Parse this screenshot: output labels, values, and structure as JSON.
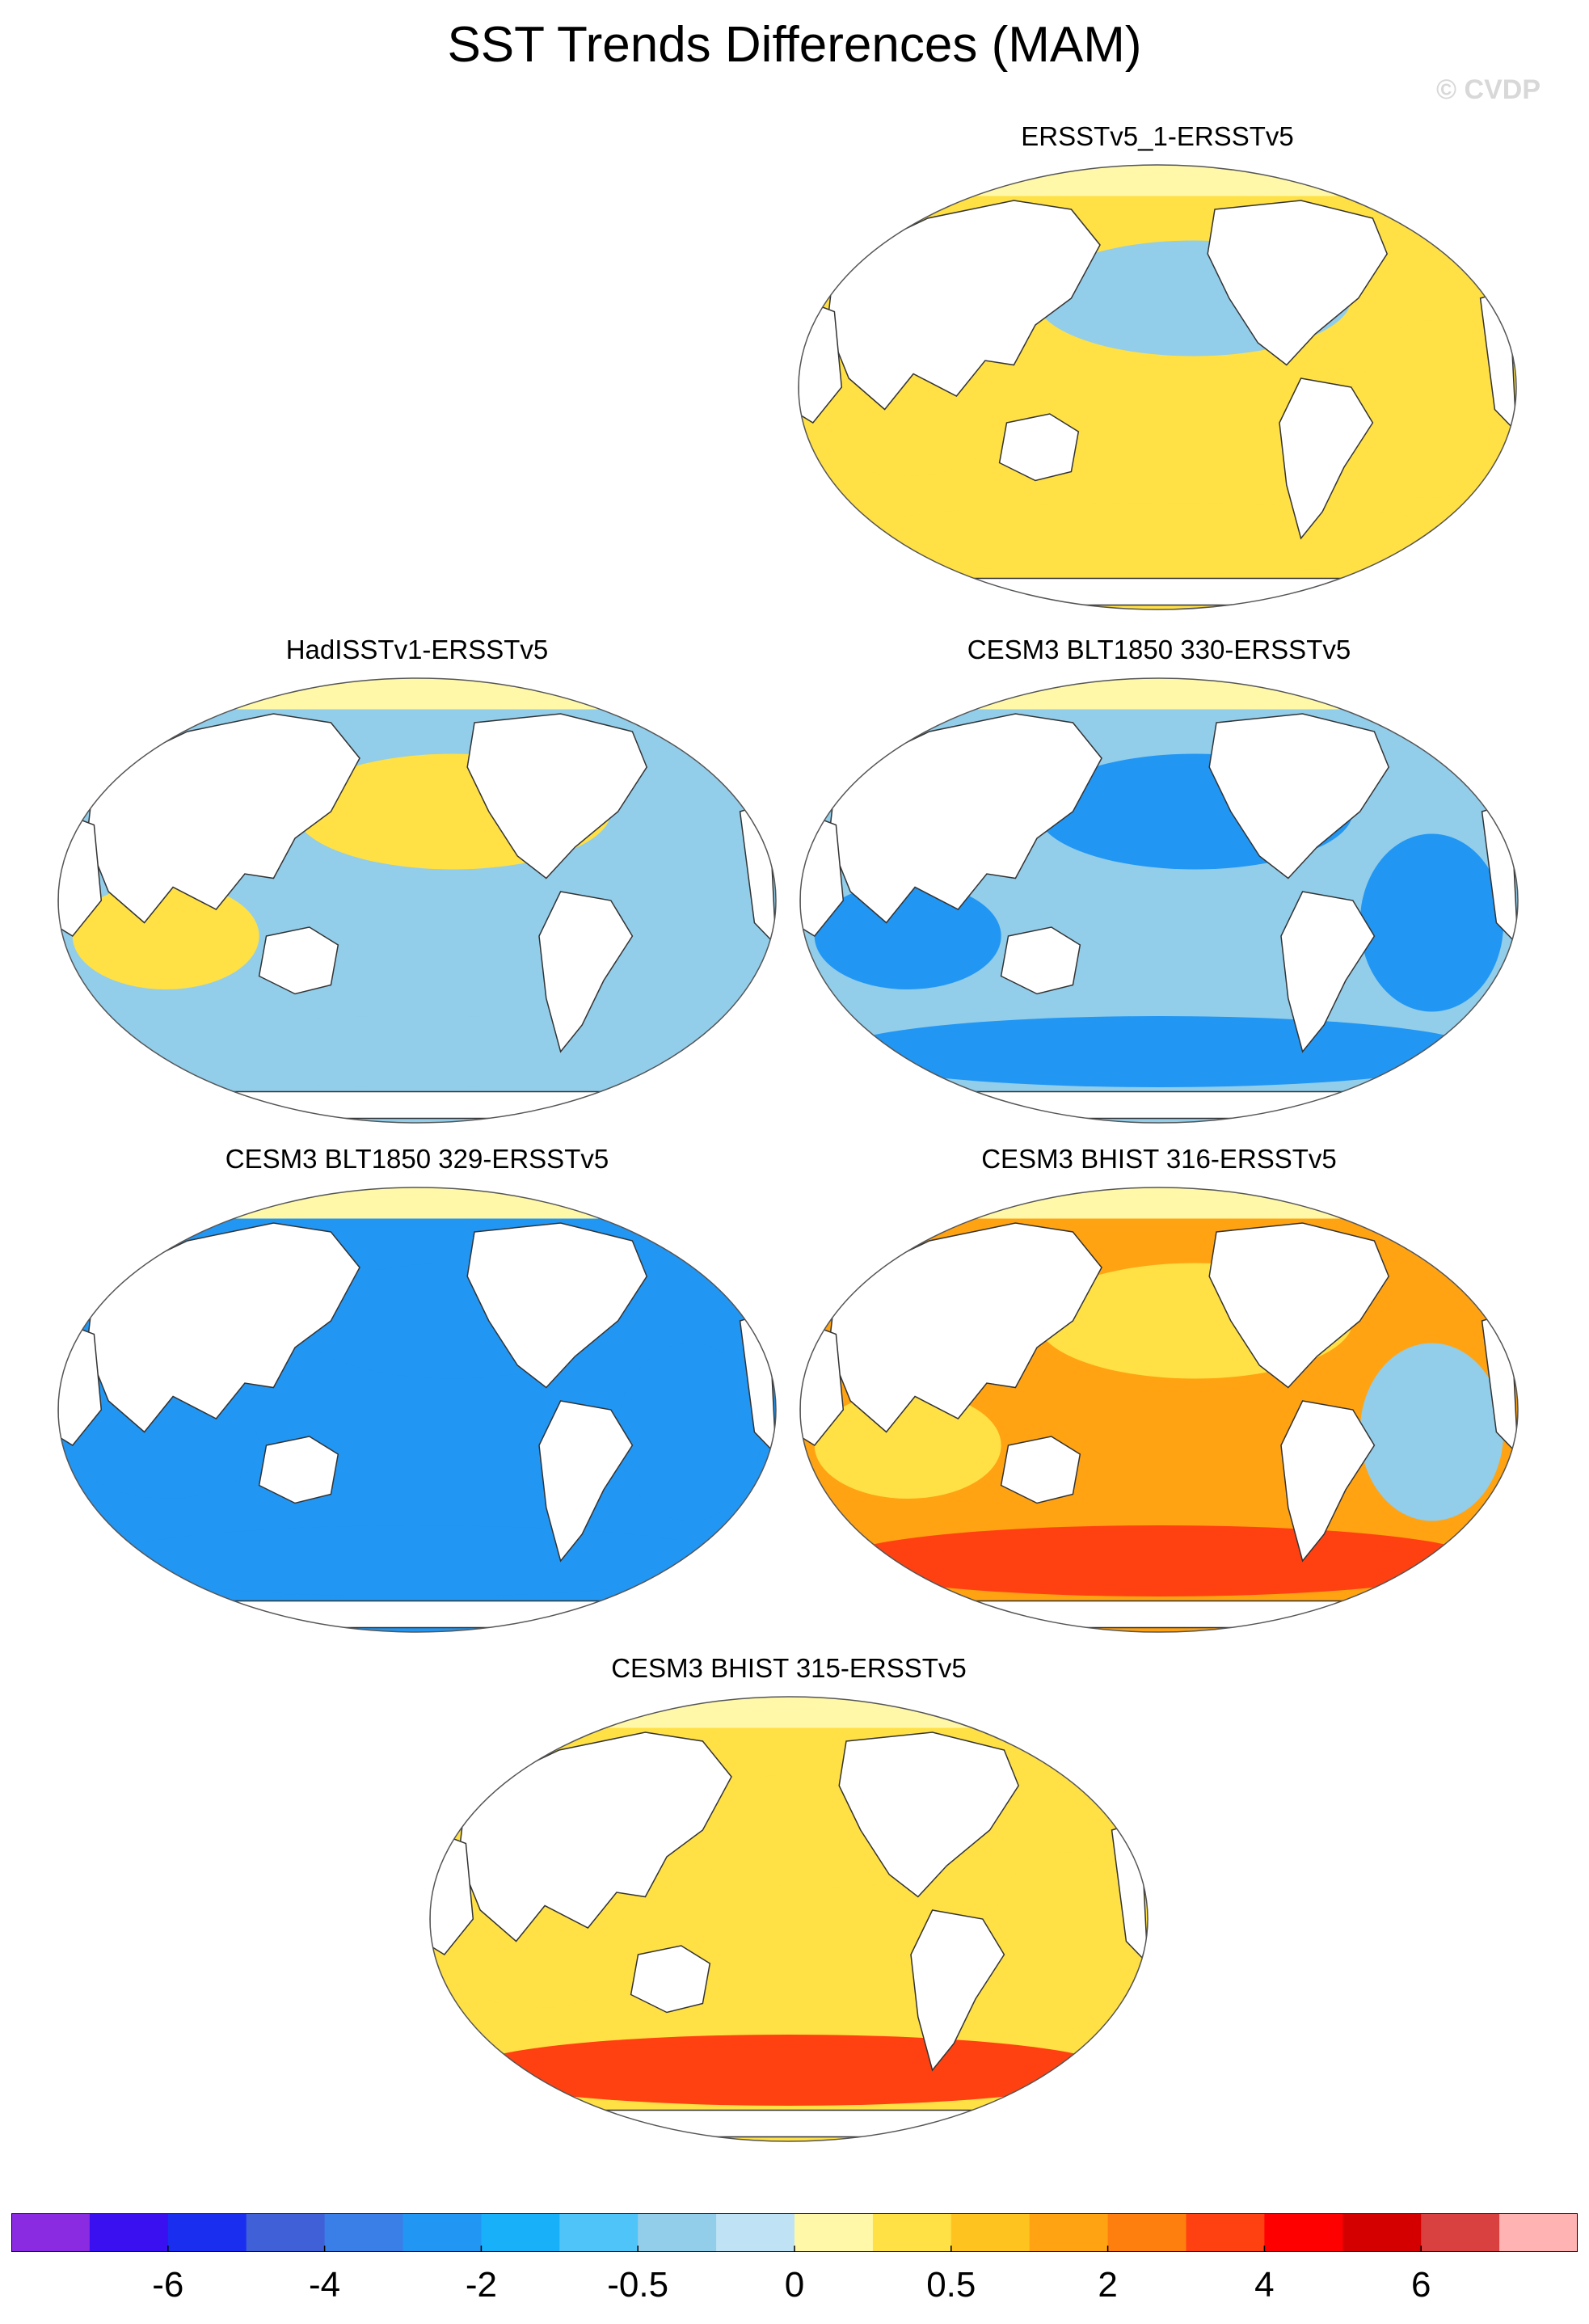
{
  "title": "SST Trends Differences (MAM)",
  "credit": "© CVDP",
  "panels": [
    {
      "title": "ERSSTv5_1-ERSSTv5",
      "anomaly": {
        "northPacific": "-0.5",
        "tropicalPacific": "0.5",
        "southernOcean": "0.5",
        "indian": "0.5",
        "atlantic": "0.5",
        "arctic": "0"
      }
    },
    {
      "title": "HadISSTv1-ERSSTv5",
      "anomaly": {
        "northPacific": "0.5",
        "tropicalPacific": "-0.5",
        "southernOcean": "-0.5",
        "indian": "0.5",
        "atlantic": "-0.5",
        "arctic": "0"
      }
    },
    {
      "title": "CESM3 BLT1850 330-ERSSTv5",
      "anomaly": {
        "northPacific": "-2",
        "tropicalPacific": "-0.5",
        "southernOcean": "-2",
        "indian": "-2",
        "atlantic": "-2",
        "arctic": "0"
      }
    },
    {
      "title": "CESM3 BLT1850 329-ERSSTv5",
      "anomaly": {
        "northPacific": "-2",
        "tropicalPacific": "-2",
        "southernOcean": "-2",
        "indian": "-2",
        "atlantic": "-2",
        "arctic": "0"
      }
    },
    {
      "title": "CESM3 BHIST 316-ERSSTv5",
      "anomaly": {
        "northPacific": "0.5",
        "tropicalPacific": "2",
        "southernOcean": "4",
        "indian": "0.5",
        "atlantic": "-0.5",
        "arctic": "0"
      }
    },
    {
      "title": "CESM3 BHIST 315-ERSSTv5",
      "anomaly": {
        "northPacific": "0.5",
        "tropicalPacific": "0.5",
        "southernOcean": "4",
        "indian": "0.5",
        "atlantic": "0.5",
        "arctic": "0"
      }
    }
  ],
  "colorbar": {
    "colors": [
      "#8a2be2",
      "#3a10f0",
      "#1a2ef0",
      "#4060d8",
      "#3a7ee8",
      "#2196f3",
      "#18b0f8",
      "#4ec4f8",
      "#92cdea",
      "#bfe3f5",
      "#fff8a8",
      "#ffe045",
      "#ffc31f",
      "#ffa312",
      "#ff7f0e",
      "#ff4112",
      "#ff0000",
      "#d40000",
      "#d94040",
      "#ffb3b3"
    ],
    "labels": [
      "-6",
      "-4",
      "-2",
      "-0.5",
      "0",
      "0.5",
      "2",
      "4",
      "6"
    ]
  }
}
